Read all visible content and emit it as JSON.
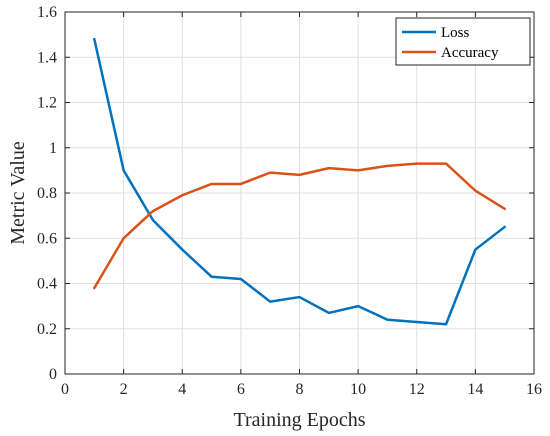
{
  "chart_data": {
    "type": "line",
    "xlabel": "Training Epochs",
    "ylabel": "Metric Value",
    "xlim": [
      0,
      16
    ],
    "ylim": [
      0,
      1.6
    ],
    "xticks": [
      0,
      2,
      4,
      6,
      8,
      10,
      12,
      14,
      16
    ],
    "yticks": [
      0,
      0.2,
      0.4,
      0.6,
      0.8,
      1,
      1.2,
      1.4,
      1.6
    ],
    "grid": true,
    "legend_position": "top-right",
    "x": [
      1,
      2,
      3,
      4,
      5,
      6,
      7,
      8,
      9,
      10,
      11,
      12,
      13,
      14,
      15
    ],
    "series": [
      {
        "name": "Loss",
        "color": "#0072BD",
        "values": [
          1.48,
          0.9,
          0.68,
          0.55,
          0.43,
          0.42,
          0.32,
          0.34,
          0.27,
          0.3,
          0.24,
          0.23,
          0.22,
          0.55,
          0.65
        ]
      },
      {
        "name": "Accuracy",
        "color": "#D95319",
        "values": [
          0.38,
          0.6,
          0.72,
          0.79,
          0.84,
          0.84,
          0.89,
          0.88,
          0.91,
          0.9,
          0.92,
          0.93,
          0.93,
          0.81,
          0.73
        ]
      }
    ]
  }
}
